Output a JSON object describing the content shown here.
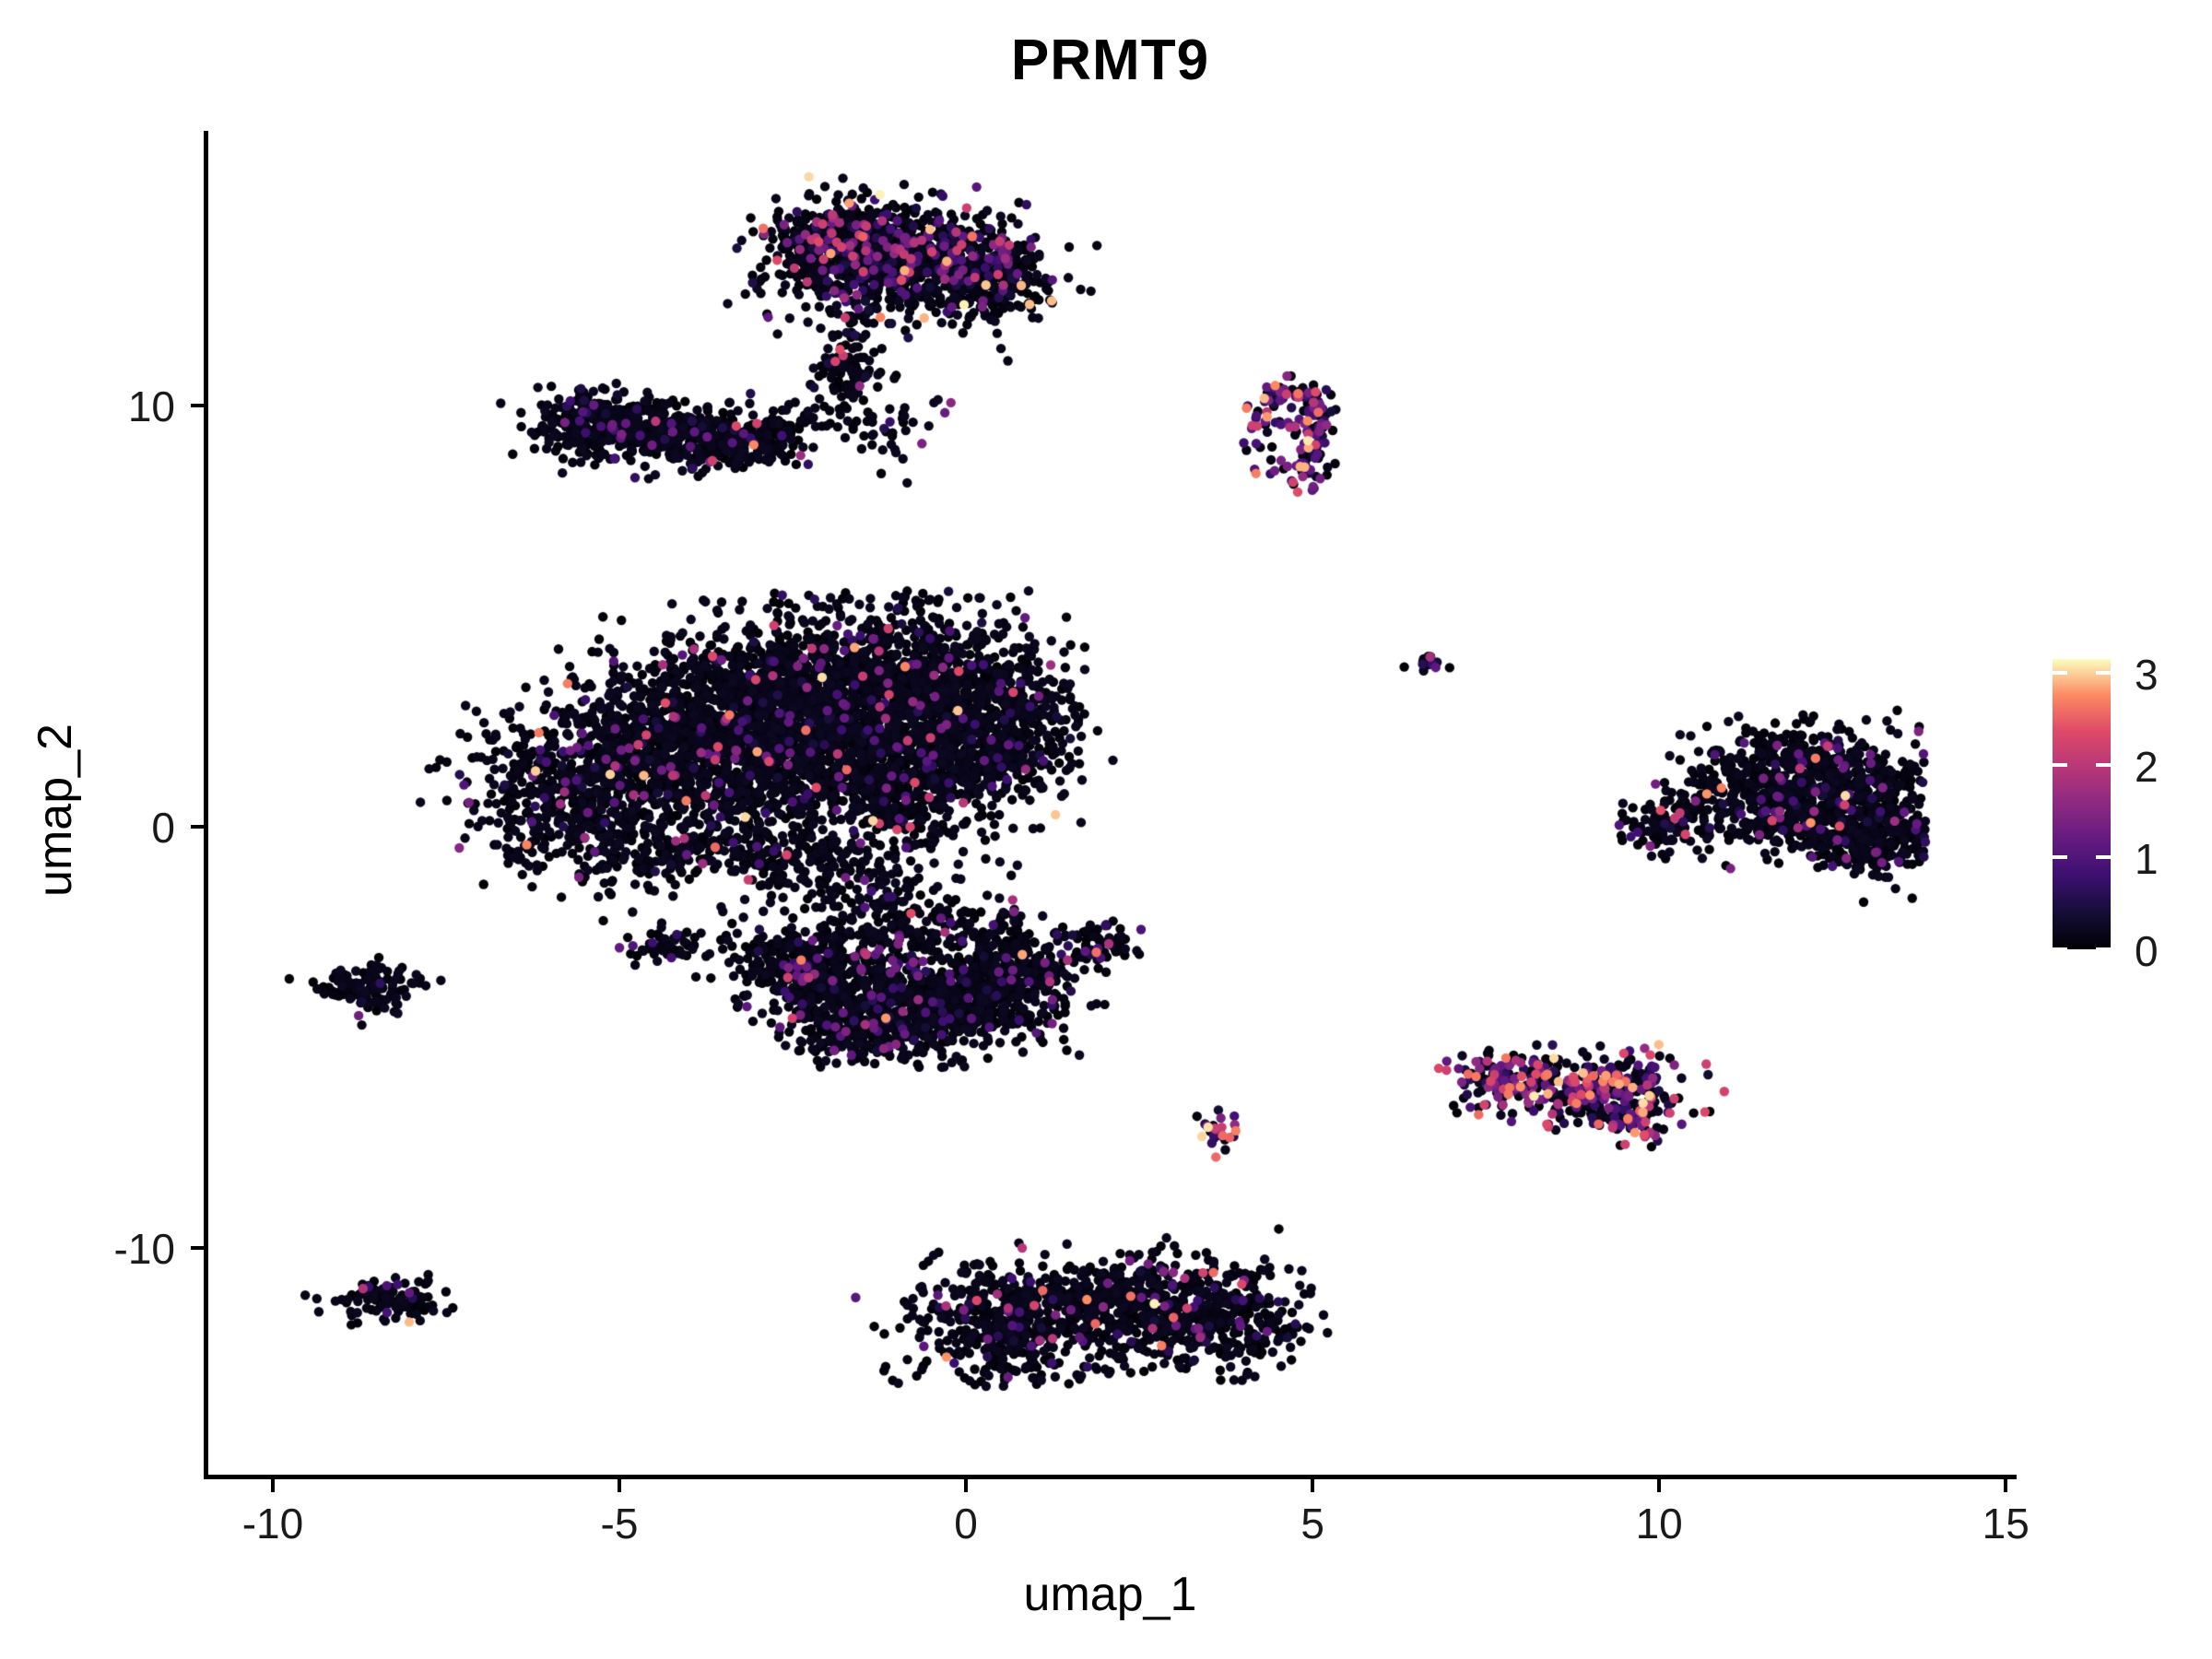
{
  "title": "PRMT9",
  "axes": {
    "x": {
      "label": "umap_1",
      "ticks": [
        -10,
        -5,
        0,
        5,
        10,
        15
      ],
      "range": [
        -10.97,
        15.13
      ]
    },
    "y": {
      "label": "umap_2",
      "ticks": [
        -10,
        0,
        10
      ],
      "range": [
        -15.43,
        16.48
      ]
    }
  },
  "colorbar": {
    "ticks": [
      0,
      1,
      2,
      3
    ],
    "max": 3.15,
    "colormap": "magma",
    "stops": [
      [
        0.0,
        "#000004"
      ],
      [
        0.125,
        "#140e36"
      ],
      [
        0.25,
        "#3b0f70"
      ],
      [
        0.375,
        "#641a80"
      ],
      [
        0.5,
        "#8c2981"
      ],
      [
        0.625,
        "#b73779"
      ],
      [
        0.75,
        "#de4968"
      ],
      [
        0.875,
        "#fc8961"
      ],
      [
        1.0,
        "#fcfdbf"
      ]
    ]
  },
  "chart_data": {
    "type": "scatter",
    "title": "PRMT9",
    "xlabel": "umap_1",
    "ylabel": "umap_2",
    "xlim": [
      -10.97,
      15.13
    ],
    "ylim": [
      -15.43,
      16.48
    ],
    "legend_position": "right",
    "grid": false,
    "point_radius_px": 5.2,
    "value_range": [
      0,
      3.15
    ],
    "description": "UMAP feature plot of PRMT9 expression; ~12000 cells, most with value 0 (black), sparse cells colored on magma scale up to ~3.15.",
    "clusters": [
      {
        "name": "top-blob",
        "blobs": [
          [
            -1.9,
            13.8,
            0.55,
            0.5,
            420
          ],
          [
            -0.8,
            13.6,
            0.7,
            0.6,
            520
          ],
          [
            0.35,
            13.05,
            0.45,
            0.5,
            260
          ],
          [
            -1.2,
            12.45,
            0.9,
            0.3,
            90
          ]
        ],
        "lines": [],
        "mix": {
          "colored": 0.14,
          "pink": 0.05,
          "hot": 0.015
        }
      },
      {
        "name": "top-tail",
        "blobs": [
          [
            -1.7,
            10.9,
            0.26,
            0.3,
            70
          ],
          [
            -0.45,
            9.9,
            0.25,
            0.45,
            8
          ]
        ],
        "lines": [
          [
            -1.55,
            12.3,
            -1.75,
            11.35,
            0.15,
            25
          ],
          [
            -1.75,
            10.45,
            -0.95,
            8.75,
            0.3,
            40
          ]
        ],
        "mix": {
          "colored": 0.05,
          "pink": 0.02,
          "hot": 0.0
        }
      },
      {
        "name": "left-band",
        "blobs": [
          [
            -5.35,
            9.6,
            0.5,
            0.4,
            290
          ],
          [
            -4.25,
            9.3,
            0.55,
            0.36,
            290
          ],
          [
            -3.3,
            9.15,
            0.45,
            0.3,
            170
          ]
        ],
        "lines": [
          [
            -2.85,
            9.1,
            -1.7,
            10.3,
            0.25,
            45
          ]
        ],
        "mix": {
          "colored": 0.05,
          "pink": 0.008,
          "hot": 0.003
        }
      },
      {
        "name": "comma-hook",
        "blobs": [
          [
            4.3,
            9.6,
            0.18,
            0.3,
            25
          ],
          [
            4.45,
            8.45,
            0.3,
            0.15,
            8
          ]
        ],
        "lines": [
          [
            4.35,
            10.1,
            4.8,
            10.45,
            0.15,
            30
          ],
          [
            4.8,
            10.45,
            5.05,
            10.0,
            0.15,
            30
          ],
          [
            5.05,
            10.0,
            4.95,
            9.3,
            0.15,
            35
          ],
          [
            4.95,
            9.3,
            5.0,
            8.8,
            0.12,
            25
          ],
          [
            5.0,
            8.8,
            4.8,
            8.15,
            0.15,
            30
          ]
        ],
        "mix": {
          "colored": 0.42,
          "pink": 0.12,
          "hot": 0.05
        }
      },
      {
        "name": "central-large",
        "blobs": [
          [
            -5.6,
            0.9,
            0.8,
            0.9,
            500
          ],
          [
            -4.3,
            1.8,
            0.9,
            1.0,
            700
          ],
          [
            -3.0,
            2.8,
            0.9,
            1.0,
            800
          ],
          [
            -1.6,
            3.3,
            0.9,
            0.95,
            800
          ],
          [
            -0.3,
            3.0,
            0.8,
            1.0,
            600
          ],
          [
            0.6,
            2.2,
            0.55,
            0.9,
            350
          ],
          [
            -2.2,
            1.2,
            1.0,
            0.8,
            500
          ],
          [
            -0.9,
            0.9,
            0.8,
            0.7,
            300
          ],
          [
            -4.0,
            -0.6,
            1.2,
            0.45,
            250
          ],
          [
            -2.0,
            -1.0,
            0.8,
            0.45,
            150
          ]
        ],
        "lines": [],
        "clip_y_max": 5.6,
        "mix": {
          "colored": 0.045,
          "pink": 0.01,
          "hot": 0.003
        }
      },
      {
        "name": "lower-middle",
        "blobs": [
          [
            -2.4,
            -3.3,
            0.5,
            0.55,
            280
          ],
          [
            -1.5,
            -4.1,
            0.6,
            0.6,
            380
          ],
          [
            -0.3,
            -4.2,
            0.7,
            0.6,
            420
          ],
          [
            0.7,
            -3.6,
            0.5,
            0.65,
            300
          ],
          [
            -0.8,
            -2.6,
            1.0,
            0.5,
            180
          ],
          [
            -1.6,
            -5.1,
            0.45,
            0.3,
            90
          ],
          [
            -4.35,
            -2.85,
            0.3,
            0.22,
            55
          ]
        ],
        "lines": [
          [
            -1.3,
            -1.6,
            -0.8,
            -2.3,
            0.3,
            35
          ]
        ],
        "mix": {
          "colored": 0.07,
          "pink": 0.012,
          "hot": 0.002
        }
      },
      {
        "name": "small-mid",
        "blobs": [
          [
            1.85,
            -2.8,
            0.28,
            0.24,
            60
          ]
        ],
        "lines": [],
        "mix": {
          "colored": 0.18,
          "pink": 0.07,
          "hot": 0.01
        }
      },
      {
        "name": "left-small",
        "blobs": [
          [
            -8.6,
            -3.82,
            0.4,
            0.28,
            130
          ]
        ],
        "lines": [],
        "mix": {
          "colored": 0.04,
          "pink": 0.005,
          "hot": 0.0
        }
      },
      {
        "name": "left-bottom",
        "blobs": [
          [
            -8.3,
            -11.2,
            0.42,
            0.26,
            115
          ]
        ],
        "lines": [],
        "mix": {
          "colored": 0.06,
          "pink": 0.02,
          "hot": 0.005
        }
      },
      {
        "name": "bottom-dumbbell",
        "blobs": [
          [
            0.55,
            -11.75,
            0.72,
            0.7,
            480
          ],
          [
            1.95,
            -11.25,
            0.5,
            0.42,
            200
          ],
          [
            3.3,
            -11.6,
            0.78,
            0.7,
            540
          ],
          [
            2.9,
            -10.0,
            0.25,
            0.15,
            6
          ]
        ],
        "lines": [],
        "clip_y_min": -13.3,
        "mix": {
          "colored": 0.06,
          "pink": 0.012,
          "hot": 0.006
        }
      },
      {
        "name": "se-colorful",
        "blobs": [
          [
            7.9,
            -6.1,
            0.45,
            0.38,
            180
          ],
          [
            9.25,
            -6.25,
            0.55,
            0.45,
            280
          ],
          [
            9.65,
            -7.0,
            0.22,
            0.25,
            50
          ]
        ],
        "lines": [],
        "mix": {
          "colored": 0.32,
          "pink": 0.12,
          "hot": 0.05
        }
      },
      {
        "name": "tiny-low",
        "blobs": [
          [
            3.62,
            -7.2,
            0.15,
            0.2,
            28
          ]
        ],
        "lines": [],
        "mix": {
          "colored": 0.45,
          "pink": 0.2,
          "hot": 0.1
        }
      },
      {
        "name": "right-large",
        "blobs": [
          [
            9.95,
            0.0,
            0.28,
            0.33,
            70
          ],
          [
            12.1,
            1.5,
            0.75,
            0.48,
            340
          ],
          [
            12.5,
            0.45,
            0.7,
            0.58,
            380
          ],
          [
            13.05,
            -0.35,
            0.45,
            0.45,
            240
          ],
          [
            11.4,
            0.3,
            0.6,
            0.55,
            150
          ]
        ],
        "lines": [
          [
            10.2,
            0.25,
            11.25,
            1.35,
            0.2,
            55
          ]
        ],
        "clip_x_max": 13.85,
        "mix": {
          "colored": 0.07,
          "pink": 0.012,
          "hot": 0.004
        }
      },
      {
        "name": "tiny-mid",
        "blobs": [
          [
            6.65,
            3.85,
            0.13,
            0.12,
            16
          ]
        ],
        "lines": [],
        "mix": {
          "colored": 0.3,
          "pink": 0.05,
          "hot": 0.0
        }
      }
    ]
  }
}
